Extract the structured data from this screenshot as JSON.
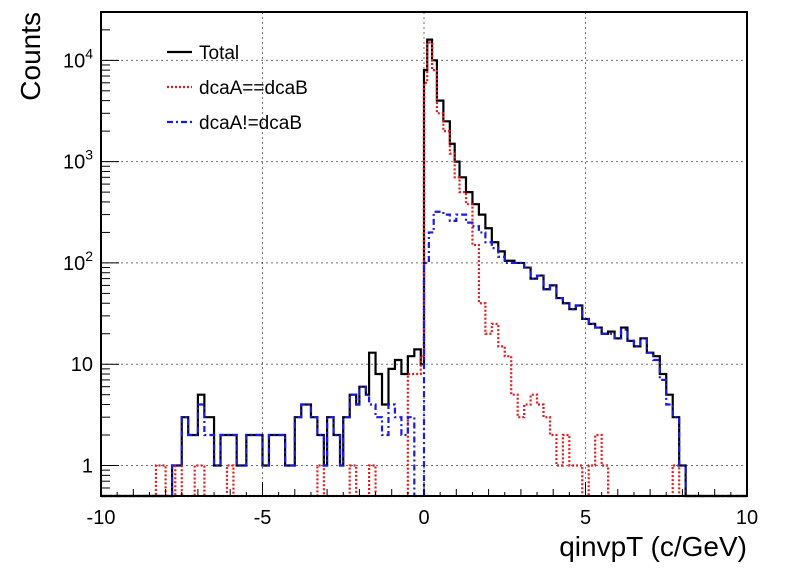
{
  "chart_data": {
    "type": "line",
    "xlabel": "qinvpT (c/GeV)",
    "ylabel": "Counts",
    "xlim": [
      -10,
      10
    ],
    "ylim": [
      0.5,
      30000
    ],
    "y_scale": "log",
    "grid": true,
    "legend_position": "top-left",
    "x_tick_labels": [
      "-10",
      "-5",
      "0",
      "5",
      "10"
    ],
    "x_ticks": [
      -10,
      -5,
      0,
      5,
      10
    ],
    "y_tick_labels": [
      {
        "value": 1,
        "base": "1",
        "exp": ""
      },
      {
        "value": 10,
        "base": "10",
        "exp": ""
      },
      {
        "value": 100,
        "base": "10",
        "exp": "2"
      },
      {
        "value": 1000,
        "base": "10",
        "exp": "3"
      },
      {
        "value": 10000,
        "base": "10",
        "exp": "4"
      }
    ],
    "series": [
      {
        "name": "Total",
        "color": "#000000",
        "style": "solid",
        "steps": [
          [
            -10,
            0
          ],
          [
            -7.8,
            1
          ],
          [
            -7.5,
            3
          ],
          [
            -7.3,
            2
          ],
          [
            -7.0,
            5
          ],
          [
            -6.8,
            3
          ],
          [
            -6.5,
            1
          ],
          [
            -6.3,
            2
          ],
          [
            -6.0,
            2
          ],
          [
            -5.8,
            1
          ],
          [
            -5.5,
            2
          ],
          [
            -5.2,
            2
          ],
          [
            -5.0,
            1
          ],
          [
            -4.8,
            2
          ],
          [
            -4.6,
            2
          ],
          [
            -4.3,
            1
          ],
          [
            -4.0,
            3
          ],
          [
            -3.8,
            4
          ],
          [
            -3.5,
            3
          ],
          [
            -3.3,
            2
          ],
          [
            -3.1,
            1
          ],
          [
            -3.0,
            3
          ],
          [
            -2.8,
            2
          ],
          [
            -2.6,
            1
          ],
          [
            -2.5,
            3
          ],
          [
            -2.3,
            5
          ],
          [
            -2.1,
            4
          ],
          [
            -2.0,
            6
          ],
          [
            -1.8,
            5
          ],
          [
            -1.7,
            13
          ],
          [
            -1.5,
            8
          ],
          [
            -1.3,
            4
          ],
          [
            -1.1,
            9
          ],
          [
            -0.9,
            11
          ],
          [
            -0.7,
            8
          ],
          [
            -0.5,
            12
          ],
          [
            -0.3,
            14
          ],
          [
            -0.1,
            10
          ],
          [
            0.0,
            8000
          ],
          [
            0.1,
            16000
          ],
          [
            0.25,
            10000
          ],
          [
            0.4,
            4000
          ],
          [
            0.6,
            2500
          ],
          [
            0.8,
            1500
          ],
          [
            0.95,
            1000
          ],
          [
            1.1,
            700
          ],
          [
            1.3,
            500
          ],
          [
            1.5,
            380
          ],
          [
            1.7,
            300
          ],
          [
            1.9,
            220
          ],
          [
            2.1,
            160
          ],
          [
            2.3,
            130
          ],
          [
            2.5,
            105
          ],
          [
            2.8,
            100
          ],
          [
            3.1,
            90
          ],
          [
            3.3,
            70
          ],
          [
            3.5,
            75
          ],
          [
            3.7,
            55
          ],
          [
            3.9,
            60
          ],
          [
            4.1,
            45
          ],
          [
            4.3,
            40
          ],
          [
            4.5,
            35
          ],
          [
            4.7,
            38
          ],
          [
            4.9,
            28
          ],
          [
            5.1,
            25
          ],
          [
            5.3,
            23
          ],
          [
            5.5,
            20
          ],
          [
            5.7,
            21
          ],
          [
            5.9,
            18
          ],
          [
            6.1,
            23
          ],
          [
            6.3,
            17
          ],
          [
            6.5,
            15
          ],
          [
            6.7,
            18
          ],
          [
            6.9,
            13
          ],
          [
            7.1,
            12
          ],
          [
            7.3,
            8
          ],
          [
            7.5,
            5
          ],
          [
            7.7,
            3
          ],
          [
            7.9,
            1
          ],
          [
            8.1,
            0
          ],
          [
            10,
            0
          ]
        ]
      },
      {
        "name": "dcaA==dcaB",
        "color": "#e8191e",
        "style": "dotted",
        "steps": [
          [
            -10,
            0
          ],
          [
            -8.3,
            1
          ],
          [
            -8.0,
            0
          ],
          [
            -7.7,
            1
          ],
          [
            -7.5,
            0
          ],
          [
            -7.1,
            1
          ],
          [
            -6.8,
            0
          ],
          [
            -6.1,
            1
          ],
          [
            -5.9,
            0
          ],
          [
            -3.3,
            1
          ],
          [
            -3.1,
            0
          ],
          [
            -2.3,
            1
          ],
          [
            -2.1,
            0
          ],
          [
            -1.7,
            1
          ],
          [
            -1.5,
            0
          ],
          [
            -0.5,
            8
          ],
          [
            -0.1,
            12
          ],
          [
            0.0,
            6000
          ],
          [
            0.1,
            15000
          ],
          [
            0.25,
            8000
          ],
          [
            0.4,
            3000
          ],
          [
            0.6,
            2000
          ],
          [
            0.8,
            1200
          ],
          [
            0.95,
            700
          ],
          [
            1.1,
            500
          ],
          [
            1.3,
            380
          ],
          [
            1.5,
            150
          ],
          [
            1.7,
            40
          ],
          [
            1.9,
            20
          ],
          [
            2.1,
            25
          ],
          [
            2.3,
            15
          ],
          [
            2.5,
            12
          ],
          [
            2.7,
            5
          ],
          [
            2.9,
            3
          ],
          [
            3.1,
            4
          ],
          [
            3.3,
            5
          ],
          [
            3.5,
            4
          ],
          [
            3.7,
            3
          ],
          [
            3.9,
            2
          ],
          [
            4.1,
            1
          ],
          [
            4.3,
            2
          ],
          [
            4.5,
            1
          ],
          [
            4.9,
            0
          ],
          [
            5.1,
            1
          ],
          [
            5.3,
            2
          ],
          [
            5.5,
            1
          ],
          [
            5.7,
            0
          ],
          [
            7.7,
            1
          ],
          [
            7.9,
            0
          ],
          [
            10,
            0
          ]
        ]
      },
      {
        "name": "dcaA!=dcaB",
        "color": "#1a1ae6",
        "style": "dashdot",
        "steps": [
          [
            -10,
            0
          ],
          [
            -7.8,
            1
          ],
          [
            -7.5,
            3
          ],
          [
            -7.3,
            2
          ],
          [
            -7.0,
            4
          ],
          [
            -6.8,
            2
          ],
          [
            -6.5,
            1
          ],
          [
            -6.3,
            2
          ],
          [
            -6.0,
            2
          ],
          [
            -5.8,
            1
          ],
          [
            -5.5,
            2
          ],
          [
            -5.2,
            2
          ],
          [
            -5.0,
            1
          ],
          [
            -4.8,
            2
          ],
          [
            -4.6,
            2
          ],
          [
            -4.3,
            1
          ],
          [
            -4.0,
            3
          ],
          [
            -3.8,
            4
          ],
          [
            -3.5,
            3
          ],
          [
            -3.3,
            2
          ],
          [
            -3.1,
            1
          ],
          [
            -3.0,
            3
          ],
          [
            -2.8,
            2
          ],
          [
            -2.6,
            1
          ],
          [
            -2.5,
            3
          ],
          [
            -2.3,
            5
          ],
          [
            -2.1,
            4
          ],
          [
            -2.0,
            6
          ],
          [
            -1.8,
            5
          ],
          [
            -1.7,
            4
          ],
          [
            -1.5,
            3
          ],
          [
            -1.3,
            2
          ],
          [
            -1.1,
            4
          ],
          [
            -0.9,
            3
          ],
          [
            -0.7,
            2
          ],
          [
            -0.5,
            3
          ],
          [
            -0.3,
            0
          ],
          [
            0.0,
            100
          ],
          [
            0.15,
            200
          ],
          [
            0.3,
            320
          ],
          [
            0.6,
            300
          ],
          [
            0.8,
            260
          ],
          [
            1.0,
            300
          ],
          [
            1.3,
            250
          ],
          [
            1.5,
            230
          ],
          [
            1.7,
            200
          ],
          [
            1.9,
            160
          ],
          [
            2.1,
            140
          ],
          [
            2.3,
            115
          ],
          [
            2.5,
            100
          ],
          [
            2.8,
            100
          ],
          [
            3.1,
            90
          ],
          [
            3.3,
            70
          ],
          [
            3.5,
            75
          ],
          [
            3.7,
            55
          ],
          [
            3.9,
            60
          ],
          [
            4.1,
            45
          ],
          [
            4.3,
            40
          ],
          [
            4.5,
            35
          ],
          [
            4.7,
            38
          ],
          [
            4.9,
            28
          ],
          [
            5.1,
            25
          ],
          [
            5.3,
            23
          ],
          [
            5.5,
            20
          ],
          [
            5.7,
            20
          ],
          [
            5.9,
            18
          ],
          [
            6.1,
            22
          ],
          [
            6.3,
            17
          ],
          [
            6.5,
            15
          ],
          [
            6.7,
            18
          ],
          [
            6.9,
            13
          ],
          [
            7.1,
            11
          ],
          [
            7.3,
            7
          ],
          [
            7.5,
            4
          ],
          [
            7.7,
            3
          ],
          [
            7.9,
            1
          ],
          [
            8.1,
            0
          ],
          [
            10,
            0
          ]
        ]
      }
    ]
  }
}
